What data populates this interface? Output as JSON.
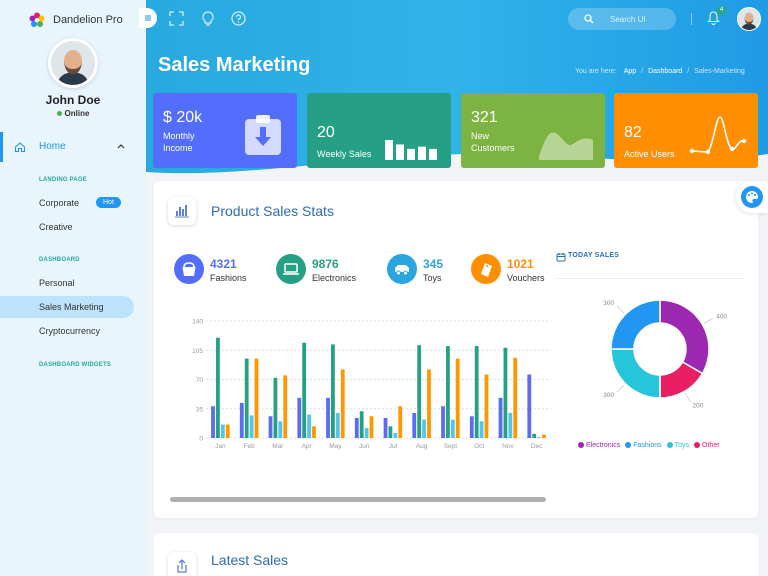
{
  "sidebar": {
    "brand": "Dandelion Pro",
    "user": {
      "name": "John Doe",
      "status": "Online"
    },
    "home_label": "Home",
    "sections": [
      {
        "title": "LANDING PAGE",
        "items": [
          {
            "label": "Corporate",
            "badge": "Hot"
          },
          {
            "label": "Creative"
          }
        ]
      },
      {
        "title": "DASHBOARD",
        "items": [
          {
            "label": "Personal"
          },
          {
            "label": "Sales Marketing",
            "active": true
          },
          {
            "label": "Cryptocurrency"
          }
        ]
      },
      {
        "title": "DASHBOARD WIDGETS"
      }
    ]
  },
  "header": {
    "search_placeholder": "Search UI",
    "notifications": "4",
    "title": "Sales Marketing",
    "breadcrumb": {
      "prefix": "You are here:",
      "items": [
        "App",
        "Dashboard",
        "Sales-Marketing"
      ]
    }
  },
  "stats": [
    {
      "value": "$ 20k",
      "label": "Monthly Income",
      "color": "#536dfe"
    },
    {
      "value": "20",
      "label": "Weekly Sales",
      "color": "#26a084",
      "bars": [
        18,
        14,
        10,
        12,
        10
      ]
    },
    {
      "value": "321",
      "label": "New Customers",
      "color": "#7cb342"
    },
    {
      "value": "82",
      "label": "Active Users",
      "color": "#ff8f00"
    }
  ],
  "product_stats": {
    "title": "Product Sales Stats",
    "metrics": [
      {
        "value": "4321",
        "label": "Fashions",
        "color": "#536dfe",
        "icon": "hand-bag-icon"
      },
      {
        "value": "9876",
        "label": "Electronics",
        "color": "#26a084",
        "icon": "laptop-icon"
      },
      {
        "value": "345",
        "label": "Toys",
        "color": "#2aa5e0",
        "icon": "toy-car-icon"
      },
      {
        "value": "1021",
        "label": "Vouchers",
        "color": "#ff8f00",
        "icon": "voucher-icon"
      }
    ],
    "today_sales_title": "TODAY SALES"
  },
  "chart_data": [
    {
      "type": "bar",
      "categories": [
        "Jan",
        "Feb",
        "Mar",
        "Apr",
        "May",
        "Jun",
        "Jul",
        "Aug",
        "Sept",
        "Oct",
        "Nov",
        "Dec"
      ],
      "ylim": [
        0,
        140
      ],
      "yticks": [
        0,
        35,
        70,
        105,
        140
      ],
      "grid": true,
      "series": [
        {
          "color": "#5c6bef",
          "values": [
            38,
            42,
            26,
            48,
            48,
            24,
            24,
            30,
            38,
            26,
            48,
            76
          ]
        },
        {
          "color": "#26a084",
          "values": [
            120,
            95,
            72,
            114,
            112,
            32,
            14,
            111,
            110,
            110,
            108,
            5
          ]
        },
        {
          "color": "#54c5e8",
          "values": [
            16,
            27,
            20,
            28,
            30,
            12,
            6,
            22,
            22,
            20,
            30,
            1
          ]
        },
        {
          "color": "#ff9800",
          "values": [
            16,
            95,
            75,
            14,
            82,
            26,
            38,
            82,
            95,
            76,
            96,
            4
          ]
        }
      ]
    },
    {
      "type": "pie",
      "donut": true,
      "labels": [
        "Electronics",
        "Fashions",
        "Toys",
        "Other"
      ],
      "values": [
        400,
        300,
        300,
        200
      ],
      "colors": [
        "#9c27b0",
        "#2196f3",
        "#26c6da",
        "#e91e63"
      ],
      "legend": "bottom"
    }
  ],
  "latest_sales": {
    "title": "Latest Sales"
  }
}
